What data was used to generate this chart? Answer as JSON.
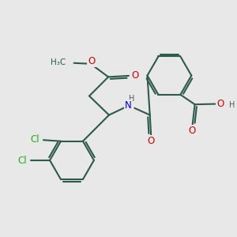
{
  "bg_color": "#e8e8e8",
  "bond_color": "#2d5a4a",
  "bond_width": 1.5,
  "atom_colors": {
    "O": "#cc0000",
    "N": "#0000cc",
    "Cl": "#22aa22",
    "C": "#2d5a4a",
    "H": "#555555"
  },
  "font_size_atom": 8.5,
  "font_size_small": 7.0,
  "fig_bg": "#e8e8e8"
}
